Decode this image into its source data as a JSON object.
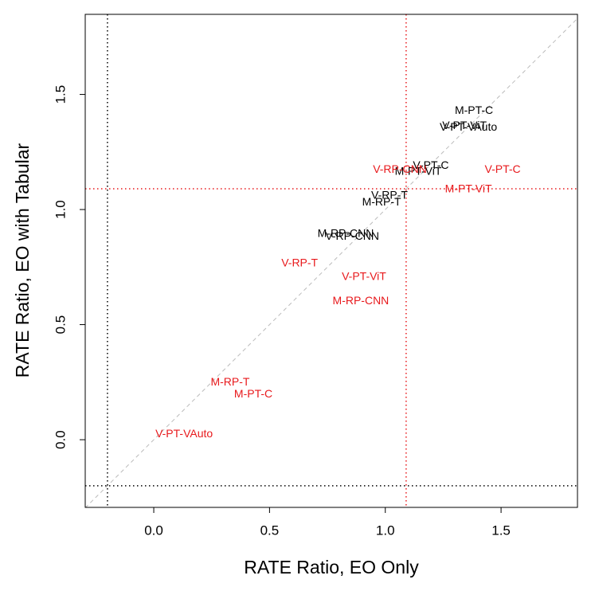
{
  "chart_data": {
    "type": "scatter",
    "x_label": "RATE Ratio, EO Only",
    "y_label": "RATE Ratio, EO with Tabular",
    "xlim": [
      -0.296,
      1.83
    ],
    "ylim": [
      -0.294,
      1.848
    ],
    "xticks": [
      {
        "value": 0,
        "label": "0.0"
      },
      {
        "value": 0.5,
        "label": "0.5"
      },
      {
        "value": 1,
        "label": "1.0"
      },
      {
        "value": 1.5,
        "label": "1.5"
      }
    ],
    "yticks": [
      {
        "value": 0,
        "label": "0.0"
      },
      {
        "value": 0.5,
        "label": "0.5"
      },
      {
        "value": 1,
        "label": "1.0"
      },
      {
        "value": 1.5,
        "label": "1.5"
      }
    ],
    "diagonal": {
      "color": "#bbbbbb"
    },
    "reference_lines": [
      {
        "axis": "x",
        "value": -0.2,
        "color": "#000000"
      },
      {
        "axis": "y",
        "value": -0.2,
        "color": "#000000"
      },
      {
        "axis": "x",
        "value": 1.09,
        "color": "#e8191c"
      },
      {
        "axis": "y",
        "value": 1.09,
        "color": "#e8191c"
      }
    ],
    "series": [
      {
        "color": "#000000",
        "labels": [
          "M-PT-C",
          "V-PT-ViT",
          "V-PT-VAuto",
          "V-PT-C",
          "M-PT-ViT",
          "V-RP-T",
          "M-RP-T",
          "M-RP-CNN",
          "V-RP-CNN"
        ],
        "x": [
          1.383,
          1.342,
          1.359,
          1.197,
          1.142,
          1.018,
          0.984,
          0.829,
          0.857
        ],
        "y": [
          1.429,
          1.363,
          1.356,
          1.19,
          1.163,
          1.059,
          1.031,
          0.893,
          0.882
        ]
      },
      {
        "color": "#e8191c",
        "labels": [
          "V-RP-CNN",
          "V-PT-C",
          "M-PT-ViT",
          "V-RP-T",
          "V-PT-ViT",
          "M-RP-CNN",
          "M-RP-T",
          "M-PT-C",
          "V-PT-VAuto"
        ],
        "x": [
          1.063,
          1.507,
          1.359,
          0.63,
          0.908,
          0.894,
          0.33,
          0.43,
          0.131
        ],
        "y": [
          1.173,
          1.173,
          1.087,
          0.765,
          0.706,
          0.602,
          0.249,
          0.197,
          0.024
        ]
      }
    ]
  }
}
